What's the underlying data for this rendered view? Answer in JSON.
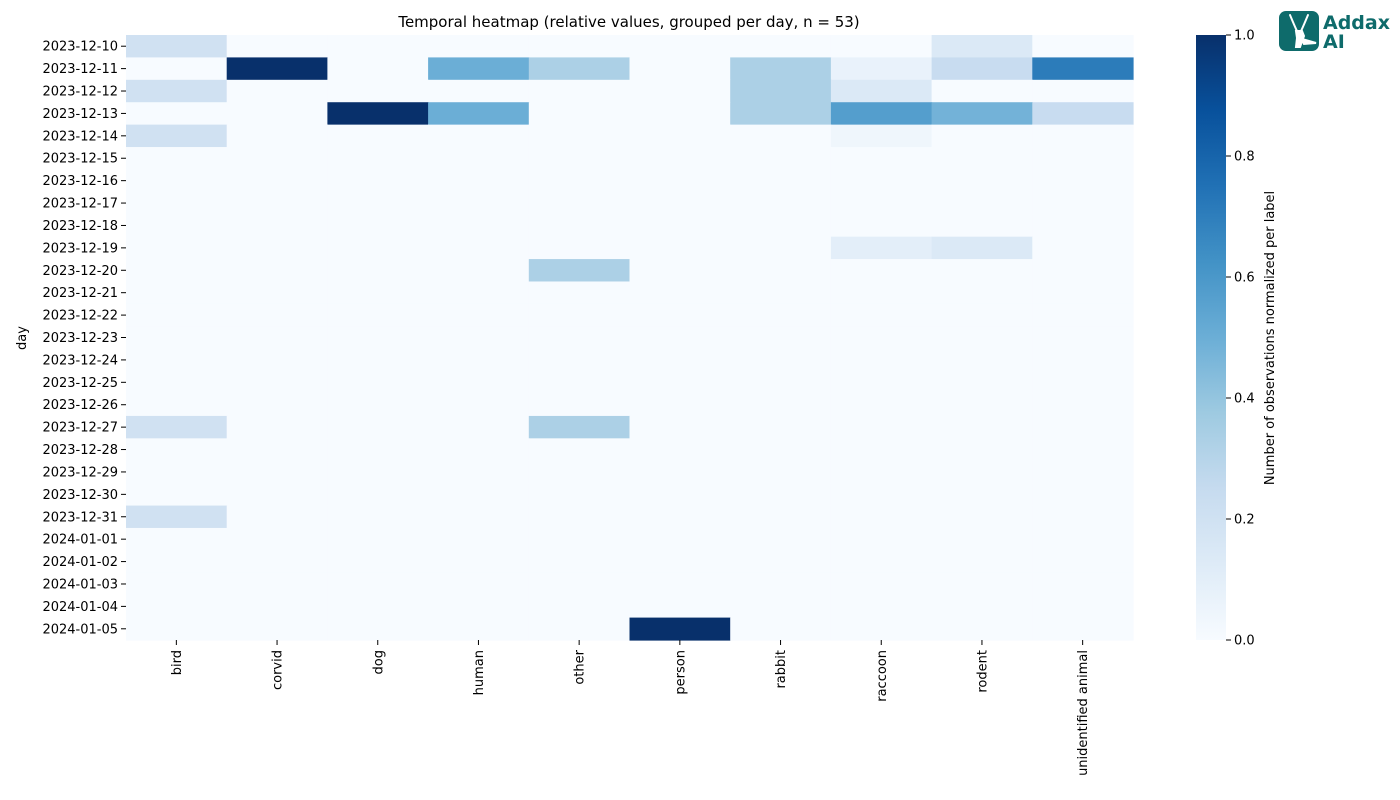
{
  "chart_data": {
    "type": "heatmap",
    "title": "Temporal heatmap (relative values, grouped per day, n = 53)",
    "xlabel": "",
    "ylabel": "day",
    "x_categories": [
      "bird",
      "corvid",
      "dog",
      "human",
      "other",
      "person",
      "rabbit",
      "raccoon",
      "rodent",
      "unidentified animal"
    ],
    "y_categories": [
      "2023-12-10",
      "2023-12-11",
      "2023-12-12",
      "2023-12-13",
      "2023-12-14",
      "2023-12-15",
      "2023-12-16",
      "2023-12-17",
      "2023-12-18",
      "2023-12-19",
      "2023-12-20",
      "2023-12-21",
      "2023-12-22",
      "2023-12-23",
      "2023-12-24",
      "2023-12-25",
      "2023-12-26",
      "2023-12-27",
      "2023-12-28",
      "2023-12-29",
      "2023-12-30",
      "2023-12-31",
      "2024-01-01",
      "2024-01-02",
      "2024-01-03",
      "2024-01-04",
      "2024-01-05"
    ],
    "values": [
      [
        0.2,
        0,
        0,
        0,
        0,
        0,
        0,
        0,
        0.14,
        0
      ],
      [
        0,
        1,
        0,
        0.5,
        0.33,
        0,
        0.33,
        0.07,
        0.24,
        0.71
      ],
      [
        0.2,
        0,
        0,
        0,
        0,
        0,
        0.33,
        0.14,
        0,
        0
      ],
      [
        0,
        0,
        1,
        0.5,
        0,
        0,
        0.33,
        0.57,
        0.48,
        0.24
      ],
      [
        0.2,
        0,
        0,
        0,
        0,
        0,
        0,
        0.04,
        0,
        0
      ],
      [
        0,
        0,
        0,
        0,
        0,
        0,
        0,
        0,
        0,
        0
      ],
      [
        0,
        0,
        0,
        0,
        0,
        0,
        0,
        0,
        0,
        0
      ],
      [
        0,
        0,
        0,
        0,
        0,
        0,
        0,
        0,
        0,
        0
      ],
      [
        0,
        0,
        0,
        0,
        0,
        0,
        0,
        0,
        0,
        0
      ],
      [
        0,
        0,
        0,
        0,
        0,
        0,
        0,
        0.1,
        0.14,
        0
      ],
      [
        0,
        0,
        0,
        0,
        0.33,
        0,
        0,
        0,
        0,
        0
      ],
      [
        0,
        0,
        0,
        0,
        0,
        0,
        0,
        0,
        0,
        0
      ],
      [
        0,
        0,
        0,
        0,
        0,
        0,
        0,
        0,
        0,
        0
      ],
      [
        0,
        0,
        0,
        0,
        0,
        0,
        0,
        0,
        0,
        0
      ],
      [
        0,
        0,
        0,
        0,
        0,
        0,
        0,
        0,
        0,
        0
      ],
      [
        0,
        0,
        0,
        0,
        0,
        0,
        0,
        0,
        0,
        0
      ],
      [
        0,
        0,
        0,
        0,
        0,
        0,
        0,
        0,
        0,
        0
      ],
      [
        0.2,
        0,
        0,
        0,
        0.33,
        0,
        0,
        0,
        0,
        0
      ],
      [
        0,
        0,
        0,
        0,
        0,
        0,
        0,
        0,
        0,
        0
      ],
      [
        0,
        0,
        0,
        0,
        0,
        0,
        0,
        0,
        0,
        0
      ],
      [
        0,
        0,
        0,
        0,
        0,
        0,
        0,
        0,
        0,
        0
      ],
      [
        0.2,
        0,
        0,
        0,
        0,
        0,
        0,
        0,
        0,
        0
      ],
      [
        0,
        0,
        0,
        0,
        0,
        0,
        0,
        0,
        0,
        0
      ],
      [
        0,
        0,
        0,
        0,
        0,
        0,
        0,
        0,
        0,
        0
      ],
      [
        0,
        0,
        0,
        0,
        0,
        0,
        0,
        0,
        0,
        0
      ],
      [
        0,
        0,
        0,
        0,
        0,
        0,
        0,
        0,
        0,
        0
      ],
      [
        0,
        0,
        0,
        0,
        0,
        1,
        0,
        0,
        0,
        0
      ]
    ],
    "colormap": "Blues",
    "colorbar": {
      "label": "Number of observations normalized per label",
      "range": [
        0,
        1
      ],
      "ticks": [
        "0.0",
        "0.2",
        "0.4",
        "0.6",
        "0.8",
        "1.0"
      ]
    },
    "grid": false,
    "legend": "colorbar-right"
  },
  "logo": {
    "line1": "Addax",
    "line2": "AI",
    "color": "#0e6b6b"
  }
}
